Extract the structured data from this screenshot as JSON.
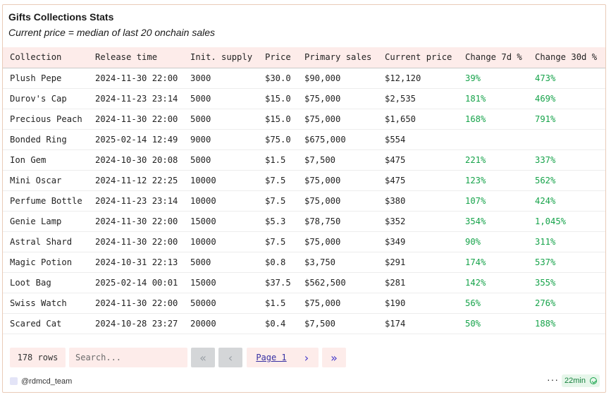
{
  "header": {
    "title": "Gifts Collections Stats",
    "subtitle": "Current price = median of last 20 onchain sales"
  },
  "table": {
    "columns": [
      "Collection",
      "Release time",
      "Init. supply",
      "Price",
      "Primary sales",
      "Current price",
      "Change 7d %",
      "Change 30d %"
    ],
    "rows": [
      [
        "Plush Pepe",
        "2024-11-30 22:00",
        "3000",
        "$30.0",
        "$90,000",
        "$12,120",
        "39%",
        "473%"
      ],
      [
        "Durov's Cap",
        "2024-11-23 23:14",
        "5000",
        "$15.0",
        "$75,000",
        "$2,535",
        "181%",
        "469%"
      ],
      [
        "Precious Peach",
        "2024-11-30 22:00",
        "5000",
        "$15.0",
        "$75,000",
        "$1,650",
        "168%",
        "791%"
      ],
      [
        "Bonded Ring",
        "2025-02-14 12:49",
        "9000",
        "$75.0",
        "$675,000",
        "$554",
        "",
        ""
      ],
      [
        "Ion Gem",
        "2024-10-30 20:08",
        "5000",
        "$1.5",
        "$7,500",
        "$475",
        "221%",
        "337%"
      ],
      [
        "Mini Oscar",
        "2024-11-12 22:25",
        "10000",
        "$7.5",
        "$75,000",
        "$475",
        "123%",
        "562%"
      ],
      [
        "Perfume Bottle",
        "2024-11-23 23:14",
        "10000",
        "$7.5",
        "$75,000",
        "$380",
        "107%",
        "424%"
      ],
      [
        "Genie Lamp",
        "2024-11-30 22:00",
        "15000",
        "$5.3",
        "$78,750",
        "$352",
        "354%",
        "1,045%"
      ],
      [
        "Astral Shard",
        "2024-11-30 22:00",
        "10000",
        "$7.5",
        "$75,000",
        "$349",
        "90%",
        "311%"
      ],
      [
        "Magic Potion",
        "2024-10-31 22:13",
        "5000",
        "$0.8",
        "$3,750",
        "$291",
        "174%",
        "537%"
      ],
      [
        "Loot Bag",
        "2025-02-14 00:01",
        "15000",
        "$37.5",
        "$562,500",
        "$281",
        "142%",
        "355%"
      ],
      [
        "Swiss Watch",
        "2024-11-30 22:00",
        "50000",
        "$1.5",
        "$75,000",
        "$190",
        "56%",
        "276%"
      ],
      [
        "Scared Cat",
        "2024-10-28 23:27",
        "20000",
        "$0.4",
        "$7,500",
        "$174",
        "50%",
        "188%"
      ]
    ]
  },
  "pager": {
    "rows_count": "178 rows",
    "search_placeholder": "Search...",
    "first_icon": "double-chevron-left-icon",
    "prev_icon": "chevron-left-icon",
    "page_label": "Page 1",
    "next_icon": "chevron-right-icon",
    "last_icon": "double-chevron-right-icon"
  },
  "footer": {
    "team": "@rdmcd_team",
    "more_label": "···",
    "refresh_label": "22min",
    "refresh_icon": "check-circle-icon"
  },
  "colors": {
    "header_bg": "#fdecea",
    "positive": "#16a34a",
    "border": "#e9cbb8",
    "link": "#3730a3"
  }
}
